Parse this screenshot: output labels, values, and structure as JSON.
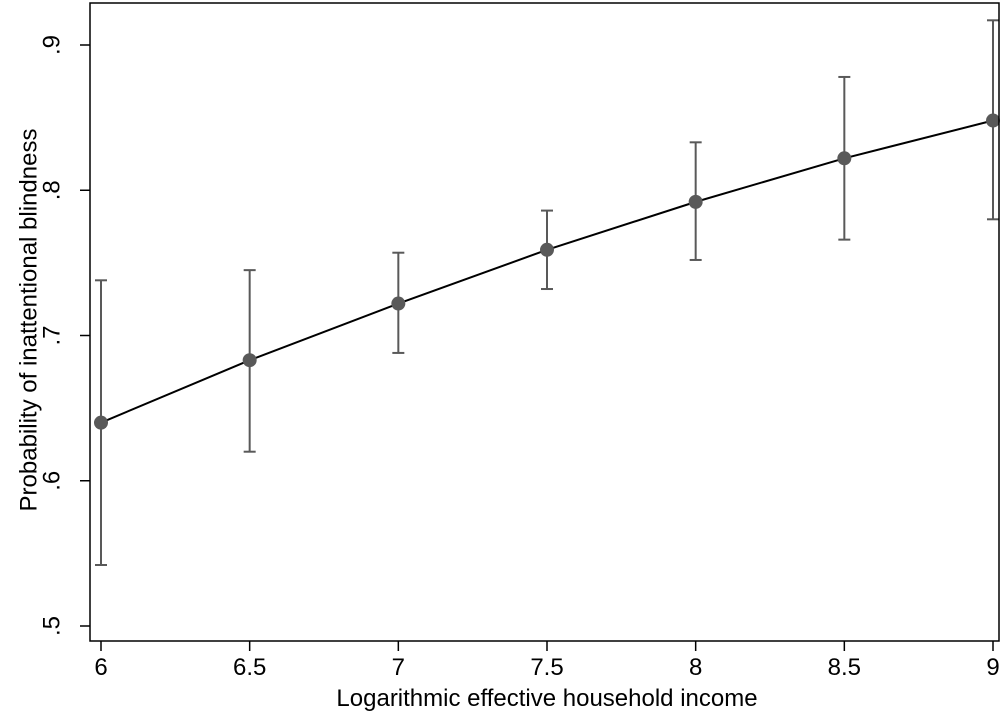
{
  "chart_data": {
    "type": "line",
    "title": "",
    "xlabel": "Logarithmic effective household income",
    "ylabel": "Probability of inattentional blindness",
    "xlim": [
      6,
      9
    ],
    "ylim": [
      0.5,
      0.9
    ],
    "x_ticks": [
      {
        "value": 6,
        "label": "6"
      },
      {
        "value": 6.5,
        "label": "6.5"
      },
      {
        "value": 7,
        "label": "7"
      },
      {
        "value": 7.5,
        "label": "7.5"
      },
      {
        "value": 8,
        "label": "8"
      },
      {
        "value": 8.5,
        "label": "8.5"
      },
      {
        "value": 9,
        "label": "9"
      }
    ],
    "y_ticks": [
      {
        "value": 0.5,
        "label": ".5"
      },
      {
        "value": 0.6,
        "label": ".6"
      },
      {
        "value": 0.7,
        "label": ".7"
      },
      {
        "value": 0.8,
        "label": ".8"
      },
      {
        "value": 0.9,
        "label": ".9"
      }
    ],
    "grid": false,
    "series": [
      {
        "x": [
          6,
          6.5,
          7,
          7.5,
          8,
          8.5,
          9
        ],
        "y": [
          0.64,
          0.683,
          0.722,
          0.759,
          0.792,
          0.822,
          0.848
        ],
        "ci_lower": [
          0.542,
          0.62,
          0.688,
          0.732,
          0.752,
          0.766,
          0.78
        ],
        "ci_upper": [
          0.738,
          0.745,
          0.757,
          0.786,
          0.833,
          0.878,
          0.917
        ],
        "line_color": "#000000",
        "marker_color": "#595959",
        "errorbar_color": "#595959"
      }
    ]
  }
}
